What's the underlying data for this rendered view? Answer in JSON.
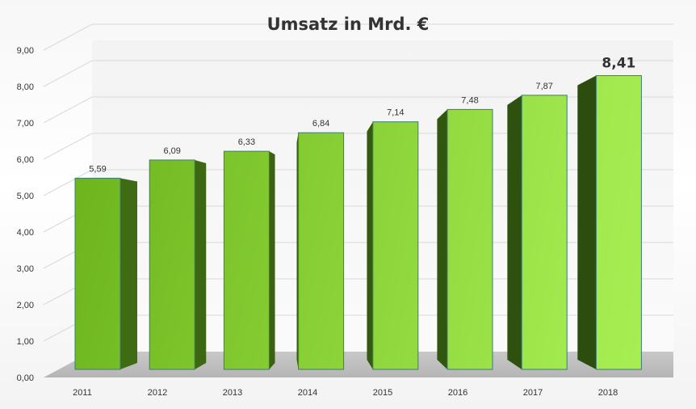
{
  "chart_data": {
    "type": "bar",
    "title": "Umsatz in Mrd.  €",
    "categories": [
      "2011",
      "2012",
      "2013",
      "2014",
      "2015",
      "2016",
      "2017",
      "2018"
    ],
    "values": [
      5.59,
      6.09,
      6.33,
      6.84,
      7.14,
      7.48,
      7.87,
      8.41
    ],
    "data_labels": [
      "5,59",
      "6,09",
      "6,33",
      "6,84",
      "7,14",
      "7,48",
      "7,87",
      "8,41"
    ],
    "highlight_last_label": true,
    "y_ticks": [
      "0,00",
      "1,00",
      "2,00",
      "3,00",
      "4,00",
      "5,00",
      "6,00",
      "7,00",
      "8,00",
      "9,00"
    ],
    "ylim": [
      0,
      9
    ],
    "xlabel": "",
    "ylabel": "",
    "grid": true,
    "legend": "none",
    "style": "3d-column",
    "colors": {
      "bar_dark": "#6eb51d",
      "bar_light": "#a6ee52",
      "bar_side_dark": "#3f6b14",
      "bar_side_light": "#2c4d0e",
      "bar_outline": "#3d7a7a",
      "floor": "#bdbdbd",
      "gridline": "#d9d9d9"
    }
  }
}
